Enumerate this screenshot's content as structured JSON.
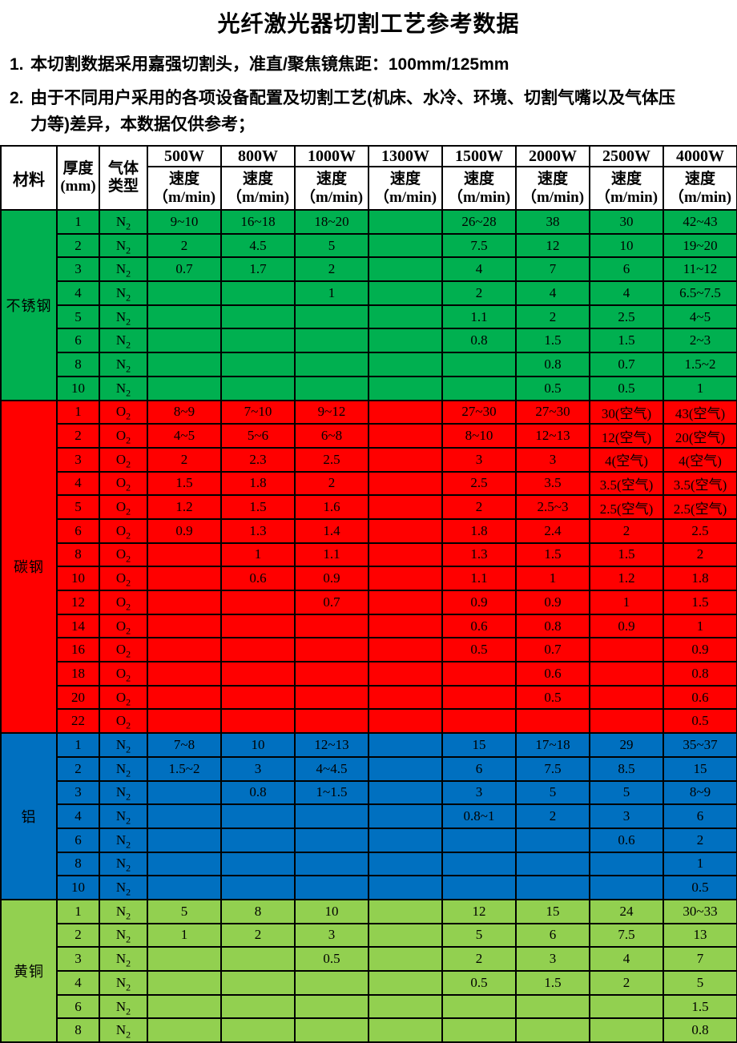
{
  "title": "光纤激光器切割工艺参考数据",
  "notes": [
    {
      "marker": "1.",
      "text": "本切割数据采用嘉强切割头，准直/聚焦镜焦距：100mm/125mm"
    },
    {
      "marker": "2.",
      "text": "由于不同用户采用的各项设备配置及切割工艺(机床、水冷、环境、切割气嘴以及气体压力等)差异，本数据仅供参考；"
    }
  ],
  "table": {
    "header": {
      "material": "材料",
      "thickness_line1": "厚度",
      "thickness_line2": "(mm)",
      "gas_line1": "气体",
      "gas_line2": "类型",
      "powers": [
        "500W",
        "800W",
        "1000W",
        "1300W",
        "1500W",
        "2000W",
        "2500W",
        "4000W"
      ],
      "speed_line1": "速度",
      "speed_line2": "（m/min)"
    },
    "sections": [
      {
        "material": "不锈钢",
        "color": "#00B050",
        "gas_symbol": "N",
        "gas_sub": "2",
        "rows": [
          {
            "t": "1",
            "s": [
              "9~10",
              "16~18",
              "18~20",
              "",
              "26~28",
              "38",
              "30",
              "42~43"
            ]
          },
          {
            "t": "2",
            "s": [
              "2",
              "4.5",
              "5",
              "",
              "7.5",
              "12",
              "10",
              "19~20"
            ]
          },
          {
            "t": "3",
            "s": [
              "0.7",
              "1.7",
              "2",
              "",
              "4",
              "7",
              "6",
              "11~12"
            ]
          },
          {
            "t": "4",
            "s": [
              "",
              "",
              "1",
              "",
              "2",
              "4",
              "4",
              "6.5~7.5"
            ]
          },
          {
            "t": "5",
            "s": [
              "",
              "",
              "",
              "",
              "1.1",
              "2",
              "2.5",
              "4~5"
            ]
          },
          {
            "t": "6",
            "s": [
              "",
              "",
              "",
              "",
              "0.8",
              "1.5",
              "1.5",
              "2~3"
            ]
          },
          {
            "t": "8",
            "s": [
              "",
              "",
              "",
              "",
              "",
              "0.8",
              "0.7",
              "1.5~2"
            ]
          },
          {
            "t": "10",
            "s": [
              "",
              "",
              "",
              "",
              "",
              "0.5",
              "0.5",
              "1"
            ]
          }
        ]
      },
      {
        "material": "碳钢",
        "color": "#FF0000",
        "gas_symbol": "O",
        "gas_sub": "2",
        "rows": [
          {
            "t": "1",
            "s": [
              "8~9",
              "7~10",
              "9~12",
              "",
              "27~30",
              "27~30",
              "30(空气)",
              "43(空气)"
            ]
          },
          {
            "t": "2",
            "s": [
              "4~5",
              "5~6",
              "6~8",
              "",
              "8~10",
              "12~13",
              "12(空气)",
              "20(空气)"
            ]
          },
          {
            "t": "3",
            "s": [
              "2",
              "2.3",
              "2.5",
              "",
              "3",
              "3",
              "4(空气)",
              "4(空气)"
            ]
          },
          {
            "t": "4",
            "s": [
              "1.5",
              "1.8",
              "2",
              "",
              "2.5",
              "3.5",
              "3.5(空气)",
              "3.5(空气)"
            ]
          },
          {
            "t": "5",
            "s": [
              "1.2",
              "1.5",
              "1.6",
              "",
              "2",
              "2.5~3",
              "2.5(空气)",
              "2.5(空气)"
            ]
          },
          {
            "t": "6",
            "s": [
              "0.9",
              "1.3",
              "1.4",
              "",
              "1.8",
              "2.4",
              "2",
              "2.5"
            ]
          },
          {
            "t": "8",
            "s": [
              "",
              "1",
              "1.1",
              "",
              "1.3",
              "1.5",
              "1.5",
              "2"
            ]
          },
          {
            "t": "10",
            "s": [
              "",
              "0.6",
              "0.9",
              "",
              "1.1",
              "1",
              "1.2",
              "1.8"
            ]
          },
          {
            "t": "12",
            "s": [
              "",
              "",
              "0.7",
              "",
              "0.9",
              "0.9",
              "1",
              "1.5"
            ]
          },
          {
            "t": "14",
            "s": [
              "",
              "",
              "",
              "",
              "0.6",
              "0.8",
              "0.9",
              "1"
            ]
          },
          {
            "t": "16",
            "s": [
              "",
              "",
              "",
              "",
              "0.5",
              "0.7",
              "",
              "0.9"
            ]
          },
          {
            "t": "18",
            "s": [
              "",
              "",
              "",
              "",
              "",
              "0.6",
              "",
              "0.8"
            ]
          },
          {
            "t": "20",
            "s": [
              "",
              "",
              "",
              "",
              "",
              "0.5",
              "",
              "0.6"
            ]
          },
          {
            "t": "22",
            "s": [
              "",
              "",
              "",
              "",
              "",
              "",
              "",
              "0.5"
            ]
          }
        ]
      },
      {
        "material": "铝",
        "color": "#0070C0",
        "gas_symbol": "N",
        "gas_sub": "2",
        "rows": [
          {
            "t": "1",
            "s": [
              "7~8",
              "10",
              "12~13",
              "",
              "15",
              "17~18",
              "29",
              "35~37"
            ]
          },
          {
            "t": "2",
            "s": [
              "1.5~2",
              "3",
              "4~4.5",
              "",
              "6",
              "7.5",
              "8.5",
              "15"
            ]
          },
          {
            "t": "3",
            "s": [
              "",
              "0.8",
              "1~1.5",
              "",
              "3",
              "5",
              "5",
              "8~9"
            ]
          },
          {
            "t": "4",
            "s": [
              "",
              "",
              "",
              "",
              "0.8~1",
              "2",
              "3",
              "6"
            ]
          },
          {
            "t": "6",
            "s": [
              "",
              "",
              "",
              "",
              "",
              "",
              "0.6",
              "2"
            ]
          },
          {
            "t": "8",
            "s": [
              "",
              "",
              "",
              "",
              "",
              "",
              "",
              "1"
            ]
          },
          {
            "t": "10",
            "s": [
              "",
              "",
              "",
              "",
              "",
              "",
              "",
              "0.5"
            ]
          }
        ]
      },
      {
        "material": "黄铜",
        "color": "#92D050",
        "gas_symbol": "N",
        "gas_sub": "2",
        "rows": [
          {
            "t": "1",
            "s": [
              "5",
              "8",
              "10",
              "",
              "12",
              "15",
              "24",
              "30~33"
            ]
          },
          {
            "t": "2",
            "s": [
              "1",
              "2",
              "3",
              "",
              "5",
              "6",
              "7.5",
              "13"
            ]
          },
          {
            "t": "3",
            "s": [
              "",
              "",
              "0.5",
              "",
              "2",
              "3",
              "4",
              "7"
            ]
          },
          {
            "t": "4",
            "s": [
              "",
              "",
              "",
              "",
              "0.5",
              "1.5",
              "2",
              "5"
            ]
          },
          {
            "t": "6",
            "s": [
              "",
              "",
              "",
              "",
              "",
              "",
              "",
              "1.5"
            ]
          },
          {
            "t": "8",
            "s": [
              "",
              "",
              "",
              "",
              "",
              "",
              "",
              "0.8"
            ]
          }
        ]
      }
    ]
  }
}
